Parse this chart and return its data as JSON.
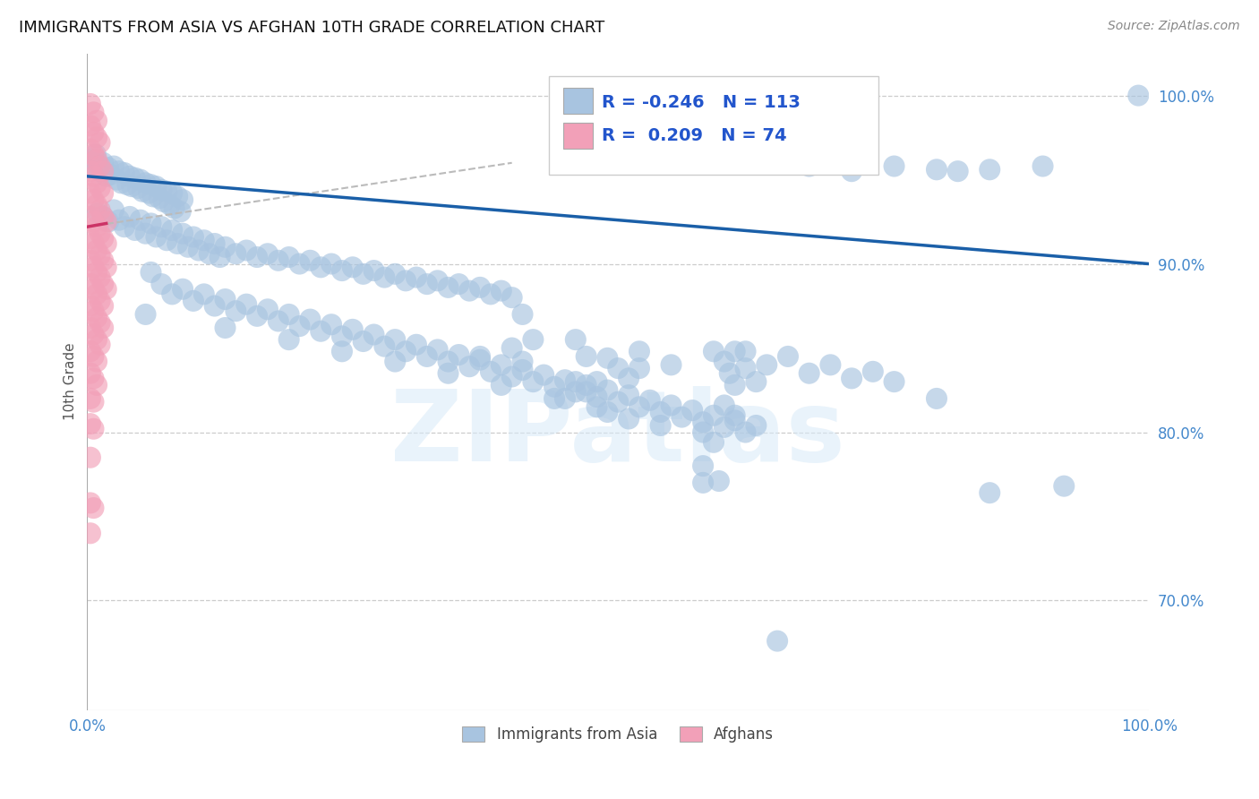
{
  "title": "IMMIGRANTS FROM ASIA VS AFGHAN 10TH GRADE CORRELATION CHART",
  "source": "Source: ZipAtlas.com",
  "ylabel": "10th Grade",
  "xlim": [
    0.0,
    1.0
  ],
  "ylim": [
    0.635,
    1.025
  ],
  "ytick_labels": [
    "70.0%",
    "80.0%",
    "90.0%",
    "100.0%"
  ],
  "ytick_values": [
    0.7,
    0.8,
    0.9,
    1.0
  ],
  "blue_color": "#a8c4e0",
  "pink_color": "#f2a0b8",
  "blue_line_color": "#1a5fa8",
  "pink_line_color": "#cc3366",
  "blue_scatter": [
    [
      0.003,
      0.962
    ],
    [
      0.006,
      0.958
    ],
    [
      0.008,
      0.965
    ],
    [
      0.01,
      0.96
    ],
    [
      0.012,
      0.955
    ],
    [
      0.015,
      0.96
    ],
    [
      0.018,
      0.952
    ],
    [
      0.02,
      0.957
    ],
    [
      0.022,
      0.953
    ],
    [
      0.025,
      0.958
    ],
    [
      0.028,
      0.95
    ],
    [
      0.03,
      0.955
    ],
    [
      0.032,
      0.948
    ],
    [
      0.035,
      0.954
    ],
    [
      0.038,
      0.947
    ],
    [
      0.04,
      0.952
    ],
    [
      0.042,
      0.946
    ],
    [
      0.045,
      0.951
    ],
    [
      0.048,
      0.945
    ],
    [
      0.05,
      0.95
    ],
    [
      0.052,
      0.943
    ],
    [
      0.055,
      0.948
    ],
    [
      0.058,
      0.942
    ],
    [
      0.06,
      0.947
    ],
    [
      0.062,
      0.94
    ],
    [
      0.065,
      0.946
    ],
    [
      0.068,
      0.939
    ],
    [
      0.07,
      0.944
    ],
    [
      0.072,
      0.937
    ],
    [
      0.075,
      0.943
    ],
    [
      0.078,
      0.935
    ],
    [
      0.08,
      0.942
    ],
    [
      0.082,
      0.933
    ],
    [
      0.085,
      0.94
    ],
    [
      0.088,
      0.931
    ],
    [
      0.09,
      0.938
    ],
    [
      0.01,
      0.93
    ],
    [
      0.015,
      0.928
    ],
    [
      0.02,
      0.925
    ],
    [
      0.025,
      0.932
    ],
    [
      0.03,
      0.926
    ],
    [
      0.035,
      0.922
    ],
    [
      0.04,
      0.928
    ],
    [
      0.045,
      0.92
    ],
    [
      0.05,
      0.926
    ],
    [
      0.055,
      0.918
    ],
    [
      0.06,
      0.924
    ],
    [
      0.065,
      0.916
    ],
    [
      0.07,
      0.922
    ],
    [
      0.075,
      0.914
    ],
    [
      0.08,
      0.92
    ],
    [
      0.085,
      0.912
    ],
    [
      0.09,
      0.918
    ],
    [
      0.095,
      0.91
    ],
    [
      0.1,
      0.916
    ],
    [
      0.105,
      0.908
    ],
    [
      0.11,
      0.914
    ],
    [
      0.115,
      0.906
    ],
    [
      0.12,
      0.912
    ],
    [
      0.125,
      0.904
    ],
    [
      0.13,
      0.91
    ],
    [
      0.14,
      0.906
    ],
    [
      0.15,
      0.908
    ],
    [
      0.16,
      0.904
    ],
    [
      0.17,
      0.906
    ],
    [
      0.18,
      0.902
    ],
    [
      0.19,
      0.904
    ],
    [
      0.2,
      0.9
    ],
    [
      0.21,
      0.902
    ],
    [
      0.22,
      0.898
    ],
    [
      0.23,
      0.9
    ],
    [
      0.24,
      0.896
    ],
    [
      0.25,
      0.898
    ],
    [
      0.26,
      0.894
    ],
    [
      0.27,
      0.896
    ],
    [
      0.28,
      0.892
    ],
    [
      0.29,
      0.894
    ],
    [
      0.3,
      0.89
    ],
    [
      0.31,
      0.892
    ],
    [
      0.32,
      0.888
    ],
    [
      0.33,
      0.89
    ],
    [
      0.34,
      0.886
    ],
    [
      0.35,
      0.888
    ],
    [
      0.36,
      0.884
    ],
    [
      0.37,
      0.886
    ],
    [
      0.38,
      0.882
    ],
    [
      0.39,
      0.884
    ],
    [
      0.4,
      0.88
    ],
    [
      0.06,
      0.895
    ],
    [
      0.07,
      0.888
    ],
    [
      0.08,
      0.882
    ],
    [
      0.09,
      0.885
    ],
    [
      0.1,
      0.878
    ],
    [
      0.11,
      0.882
    ],
    [
      0.12,
      0.875
    ],
    [
      0.13,
      0.879
    ],
    [
      0.14,
      0.872
    ],
    [
      0.15,
      0.876
    ],
    [
      0.16,
      0.869
    ],
    [
      0.17,
      0.873
    ],
    [
      0.18,
      0.866
    ],
    [
      0.19,
      0.87
    ],
    [
      0.2,
      0.863
    ],
    [
      0.21,
      0.867
    ],
    [
      0.22,
      0.86
    ],
    [
      0.23,
      0.864
    ],
    [
      0.24,
      0.857
    ],
    [
      0.25,
      0.861
    ],
    [
      0.26,
      0.854
    ],
    [
      0.27,
      0.858
    ],
    [
      0.28,
      0.851
    ],
    [
      0.29,
      0.855
    ],
    [
      0.3,
      0.848
    ],
    [
      0.31,
      0.852
    ],
    [
      0.32,
      0.845
    ],
    [
      0.33,
      0.849
    ],
    [
      0.34,
      0.842
    ],
    [
      0.35,
      0.846
    ],
    [
      0.36,
      0.839
    ],
    [
      0.37,
      0.843
    ],
    [
      0.38,
      0.836
    ],
    [
      0.39,
      0.84
    ],
    [
      0.4,
      0.833
    ],
    [
      0.41,
      0.837
    ],
    [
      0.42,
      0.83
    ],
    [
      0.43,
      0.834
    ],
    [
      0.44,
      0.827
    ],
    [
      0.45,
      0.831
    ],
    [
      0.46,
      0.824
    ],
    [
      0.47,
      0.828
    ],
    [
      0.48,
      0.821
    ],
    [
      0.49,
      0.825
    ],
    [
      0.5,
      0.818
    ],
    [
      0.51,
      0.822
    ],
    [
      0.52,
      0.815
    ],
    [
      0.53,
      0.819
    ],
    [
      0.54,
      0.812
    ],
    [
      0.55,
      0.816
    ],
    [
      0.56,
      0.809
    ],
    [
      0.57,
      0.813
    ],
    [
      0.58,
      0.806
    ],
    [
      0.59,
      0.81
    ],
    [
      0.6,
      0.803
    ],
    [
      0.61,
      0.807
    ],
    [
      0.62,
      0.8
    ],
    [
      0.63,
      0.804
    ],
    [
      0.055,
      0.87
    ],
    [
      0.13,
      0.862
    ],
    [
      0.19,
      0.855
    ],
    [
      0.24,
      0.848
    ],
    [
      0.29,
      0.842
    ],
    [
      0.34,
      0.835
    ],
    [
      0.39,
      0.828
    ],
    [
      0.44,
      0.82
    ],
    [
      0.49,
      0.812
    ],
    [
      0.54,
      0.804
    ],
    [
      0.41,
      0.87
    ],
    [
      0.46,
      0.855
    ],
    [
      0.52,
      0.848
    ],
    [
      0.55,
      0.84
    ],
    [
      0.45,
      0.82
    ],
    [
      0.48,
      0.815
    ],
    [
      0.51,
      0.808
    ],
    [
      0.64,
      0.96
    ],
    [
      0.68,
      0.958
    ],
    [
      0.72,
      0.955
    ],
    [
      0.76,
      0.958
    ],
    [
      0.8,
      0.956
    ],
    [
      0.82,
      0.955
    ],
    [
      0.85,
      0.956
    ],
    [
      0.9,
      0.958
    ],
    [
      0.99,
      1.0
    ],
    [
      0.58,
      0.77
    ],
    [
      0.595,
      0.771
    ],
    [
      0.59,
      0.848
    ],
    [
      0.6,
      0.842
    ],
    [
      0.605,
      0.835
    ],
    [
      0.61,
      0.828
    ],
    [
      0.58,
      0.8
    ],
    [
      0.59,
      0.794
    ],
    [
      0.61,
      0.848
    ],
    [
      0.62,
      0.838
    ],
    [
      0.58,
      0.78
    ],
    [
      0.63,
      0.83
    ],
    [
      0.37,
      0.845
    ],
    [
      0.4,
      0.85
    ],
    [
      0.41,
      0.842
    ],
    [
      0.42,
      0.855
    ],
    [
      0.47,
      0.845
    ],
    [
      0.5,
      0.838
    ],
    [
      0.49,
      0.844
    ],
    [
      0.51,
      0.832
    ],
    [
      0.52,
      0.838
    ],
    [
      0.46,
      0.83
    ],
    [
      0.47,
      0.824
    ],
    [
      0.48,
      0.83
    ],
    [
      0.6,
      0.816
    ],
    [
      0.61,
      0.81
    ],
    [
      0.62,
      0.848
    ],
    [
      0.64,
      0.84
    ],
    [
      0.66,
      0.845
    ],
    [
      0.68,
      0.835
    ],
    [
      0.7,
      0.84
    ],
    [
      0.72,
      0.832
    ],
    [
      0.74,
      0.836
    ],
    [
      0.76,
      0.83
    ],
    [
      0.8,
      0.82
    ],
    [
      0.85,
      0.764
    ],
    [
      0.92,
      0.768
    ],
    [
      0.65,
      0.676
    ]
  ],
  "pink_scatter": [
    [
      0.003,
      0.995
    ],
    [
      0.006,
      0.99
    ],
    [
      0.009,
      0.985
    ],
    [
      0.003,
      0.982
    ],
    [
      0.006,
      0.978
    ],
    [
      0.009,
      0.975
    ],
    [
      0.012,
      0.972
    ],
    [
      0.003,
      0.968
    ],
    [
      0.006,
      0.965
    ],
    [
      0.009,
      0.962
    ],
    [
      0.012,
      0.958
    ],
    [
      0.015,
      0.955
    ],
    [
      0.003,
      0.955
    ],
    [
      0.006,
      0.952
    ],
    [
      0.009,
      0.948
    ],
    [
      0.012,
      0.945
    ],
    [
      0.015,
      0.942
    ],
    [
      0.003,
      0.942
    ],
    [
      0.006,
      0.938
    ],
    [
      0.009,
      0.935
    ],
    [
      0.012,
      0.932
    ],
    [
      0.015,
      0.928
    ],
    [
      0.018,
      0.925
    ],
    [
      0.003,
      0.928
    ],
    [
      0.006,
      0.925
    ],
    [
      0.009,
      0.922
    ],
    [
      0.012,
      0.918
    ],
    [
      0.015,
      0.915
    ],
    [
      0.018,
      0.912
    ],
    [
      0.003,
      0.915
    ],
    [
      0.006,
      0.912
    ],
    [
      0.009,
      0.908
    ],
    [
      0.012,
      0.905
    ],
    [
      0.015,
      0.902
    ],
    [
      0.018,
      0.898
    ],
    [
      0.003,
      0.902
    ],
    [
      0.006,
      0.898
    ],
    [
      0.009,
      0.895
    ],
    [
      0.012,
      0.892
    ],
    [
      0.015,
      0.888
    ],
    [
      0.018,
      0.885
    ],
    [
      0.003,
      0.888
    ],
    [
      0.006,
      0.885
    ],
    [
      0.009,
      0.882
    ],
    [
      0.012,
      0.878
    ],
    [
      0.015,
      0.875
    ],
    [
      0.003,
      0.875
    ],
    [
      0.006,
      0.872
    ],
    [
      0.009,
      0.868
    ],
    [
      0.012,
      0.865
    ],
    [
      0.015,
      0.862
    ],
    [
      0.003,
      0.862
    ],
    [
      0.006,
      0.858
    ],
    [
      0.009,
      0.855
    ],
    [
      0.012,
      0.852
    ],
    [
      0.003,
      0.848
    ],
    [
      0.006,
      0.845
    ],
    [
      0.009,
      0.842
    ],
    [
      0.003,
      0.835
    ],
    [
      0.006,
      0.832
    ],
    [
      0.009,
      0.828
    ],
    [
      0.003,
      0.82
    ],
    [
      0.006,
      0.818
    ],
    [
      0.003,
      0.805
    ],
    [
      0.006,
      0.802
    ],
    [
      0.003,
      0.785
    ],
    [
      0.003,
      0.758
    ],
    [
      0.006,
      0.755
    ],
    [
      0.003,
      0.74
    ]
  ],
  "blue_trendline": [
    [
      0.0,
      0.952
    ],
    [
      1.0,
      0.9
    ]
  ],
  "pink_trendline_dashed": [
    [
      0.0,
      0.922
    ],
    [
      0.4,
      0.96
    ]
  ],
  "pink_trendline_solid": [
    [
      0.0,
      0.922
    ],
    [
      0.018,
      0.924
    ]
  ]
}
